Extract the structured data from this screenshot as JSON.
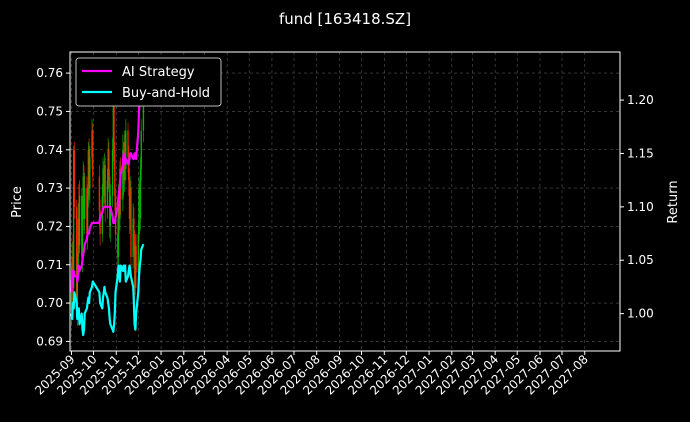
{
  "chart_data": {
    "type": "line",
    "title": "fund [163418.SZ]",
    "ylabel_left": "Price",
    "ylabel_right": "Return",
    "ylim_left": [
      0.6875,
      0.7655
    ],
    "ylim_right": [
      0.965,
      1.245
    ],
    "x_range": [
      "2025-08-30",
      "2027-09-18"
    ],
    "x_ticks": [
      "2025-09",
      "2025-10",
      "2025-11",
      "2025-12",
      "2026-01",
      "2026-02",
      "2026-03",
      "2026-04",
      "2026-05",
      "2026-06",
      "2026-07",
      "2026-08",
      "2026-09",
      "2026-10",
      "2026-11",
      "2026-12",
      "2027-01",
      "2027-02",
      "2027-03",
      "2027-04",
      "2027-05",
      "2027-06",
      "2027-07",
      "2027-08"
    ],
    "y_ticks_left": [
      0.69,
      0.7,
      0.71,
      0.72,
      0.73,
      0.74,
      0.75,
      0.76
    ],
    "y_ticks_right": [
      1.0,
      1.05,
      1.1,
      1.15,
      1.2
    ],
    "grid": true,
    "legend_position": "top-left",
    "colors": {
      "background": "#000000",
      "up": "#00c000",
      "down": "#ff2a00",
      "ai": "#ff00ff",
      "bh": "#00ffff",
      "grid": "#555555"
    },
    "series": [
      {
        "name": "AI Strategy",
        "axis": "right",
        "dates": [
          "2025-09-01",
          "2025-09-02",
          "2025-09-03",
          "2025-09-04",
          "2025-09-05",
          "2025-09-08",
          "2025-09-09",
          "2025-09-10",
          "2025-09-11",
          "2025-09-12",
          "2025-09-15",
          "2025-09-16",
          "2025-09-17",
          "2025-09-18",
          "2025-09-19",
          "2025-09-22",
          "2025-09-23",
          "2025-09-24",
          "2025-09-25",
          "2025-09-26",
          "2025-09-29",
          "2025-09-30",
          "2025-10-09",
          "2025-10-10",
          "2025-10-13",
          "2025-10-14",
          "2025-10-15",
          "2025-10-16",
          "2025-10-17",
          "2025-10-20",
          "2025-10-21",
          "2025-10-22",
          "2025-10-23",
          "2025-10-24",
          "2025-10-27",
          "2025-10-28",
          "2025-10-29",
          "2025-10-30",
          "2025-10-31",
          "2025-11-03",
          "2025-11-04",
          "2025-11-05",
          "2025-11-06",
          "2025-11-07",
          "2025-11-10",
          "2025-11-11",
          "2025-11-12",
          "2025-11-13",
          "2025-11-14",
          "2025-11-17",
          "2025-11-18",
          "2025-11-19",
          "2025-11-20",
          "2025-11-21",
          "2025-11-24",
          "2025-11-25",
          "2025-11-26",
          "2025-11-27",
          "2025-11-28",
          "2025-12-01",
          "2025-12-02",
          "2025-12-03",
          "2025-12-04",
          "2025-12-05",
          "2025-12-08"
        ],
        "values": [
          1.02,
          1.04,
          1.037,
          1.04,
          1.035,
          1.035,
          1.03,
          1.035,
          1.045,
          1.04,
          1.045,
          1.05,
          1.055,
          1.06,
          1.065,
          1.07,
          1.075,
          1.075,
          1.075,
          1.08,
          1.085,
          1.085,
          1.085,
          1.09,
          1.095,
          1.098,
          1.1,
          1.1,
          1.1,
          1.1,
          1.1,
          1.1,
          1.1,
          1.1,
          1.09,
          1.085,
          1.085,
          1.085,
          1.09,
          1.1,
          1.11,
          1.115,
          1.12,
          1.13,
          1.14,
          1.15,
          1.14,
          1.145,
          1.145,
          1.14,
          1.14,
          1.145,
          1.15,
          1.15,
          1.145,
          1.145,
          1.15,
          1.15,
          1.145,
          1.17,
          1.19,
          1.2,
          1.22,
          1.23,
          1.24
        ]
      },
      {
        "name": "Buy-and-Hold",
        "axis": "right",
        "dates": [
          "2025-09-01",
          "2025-09-02",
          "2025-09-03",
          "2025-09-04",
          "2025-09-05",
          "2025-09-08",
          "2025-09-09",
          "2025-09-10",
          "2025-09-11",
          "2025-09-12",
          "2025-09-15",
          "2025-09-16",
          "2025-09-17",
          "2025-09-18",
          "2025-09-19",
          "2025-09-22",
          "2025-09-23",
          "2025-09-24",
          "2025-09-25",
          "2025-09-26",
          "2025-09-29",
          "2025-09-30",
          "2025-10-09",
          "2025-10-10",
          "2025-10-13",
          "2025-10-14",
          "2025-10-15",
          "2025-10-16",
          "2025-10-17",
          "2025-10-20",
          "2025-10-21",
          "2025-10-22",
          "2025-10-23",
          "2025-10-24",
          "2025-10-27",
          "2025-10-28",
          "2025-10-29",
          "2025-10-30",
          "2025-10-31",
          "2025-11-03",
          "2025-11-04",
          "2025-11-05",
          "2025-11-06",
          "2025-11-07",
          "2025-11-10",
          "2025-11-11",
          "2025-11-12",
          "2025-11-13",
          "2025-11-14",
          "2025-11-17",
          "2025-11-18",
          "2025-11-19",
          "2025-11-20",
          "2025-11-21",
          "2025-11-24",
          "2025-11-25",
          "2025-11-26",
          "2025-11-27",
          "2025-11-28",
          "2025-12-01",
          "2025-12-02",
          "2025-12-03",
          "2025-12-04",
          "2025-12-05",
          "2025-12-08"
        ],
        "values": [
          1.0,
          0.995,
          1.01,
          1.005,
          1.02,
          1.01,
          0.995,
          1.0,
          1.005,
          0.99,
          1.0,
          0.985,
          0.98,
          0.985,
          1.0,
          1.005,
          1.01,
          1.015,
          1.01,
          1.02,
          1.025,
          1.03,
          1.02,
          1.01,
          1.005,
          1.015,
          1.02,
          1.025,
          1.02,
          1.015,
          1.01,
          1.005,
          0.995,
          0.99,
          0.985,
          0.983,
          0.99,
          1.0,
          1.02,
          1.035,
          1.045,
          1.04,
          1.03,
          1.045,
          1.04,
          1.045,
          1.04,
          1.045,
          1.03,
          1.035,
          1.04,
          1.045,
          1.04,
          1.035,
          1.025,
          1.01,
          0.99,
          0.985,
          1.0,
          1.02,
          1.035,
          1.045,
          1.05,
          1.06,
          1.065
        ]
      }
    ],
    "price_bars": {
      "axis": "left",
      "bars": [
        [
          "2025-09-01",
          0.698,
          0.706,
          0.694,
          0.71
        ],
        [
          "2025-09-02",
          0.706,
          0.712,
          0.7,
          0.716
        ],
        [
          "2025-09-03",
          0.712,
          0.704,
          0.699,
          0.718
        ],
        [
          "2025-09-04",
          0.704,
          0.74,
          0.702,
          0.741
        ],
        [
          "2025-09-05",
          0.74,
          0.725,
          0.722,
          0.742
        ],
        [
          "2025-09-08",
          0.725,
          0.698,
          0.696,
          0.727
        ],
        [
          "2025-09-09",
          0.698,
          0.71,
          0.694,
          0.713
        ],
        [
          "2025-09-10",
          0.71,
          0.722,
          0.707,
          0.726
        ],
        [
          "2025-09-11",
          0.722,
          0.715,
          0.712,
          0.731
        ],
        [
          "2025-09-12",
          0.715,
          0.728,
          0.713,
          0.732
        ],
        [
          "2025-09-15",
          0.728,
          0.712,
          0.709,
          0.73
        ],
        [
          "2025-09-16",
          0.712,
          0.725,
          0.708,
          0.728
        ],
        [
          "2025-09-17",
          0.725,
          0.733,
          0.722,
          0.737
        ],
        [
          "2025-09-18",
          0.733,
          0.722,
          0.719,
          0.736
        ],
        [
          "2025-09-19",
          0.722,
          0.73,
          0.718,
          0.734
        ],
        [
          "2025-09-22",
          0.73,
          0.718,
          0.716,
          0.733
        ],
        [
          "2025-09-23",
          0.718,
          0.728,
          0.714,
          0.731
        ],
        [
          "2025-09-24",
          0.728,
          0.74,
          0.725,
          0.742
        ],
        [
          "2025-09-25",
          0.74,
          0.73,
          0.727,
          0.743
        ],
        [
          "2025-09-26",
          0.73,
          0.738,
          0.726,
          0.741
        ],
        [
          "2025-09-29",
          0.738,
          0.745,
          0.735,
          0.748
        ],
        [
          "2025-09-30",
          0.745,
          0.733,
          0.73,
          0.747
        ],
        [
          "2025-10-09",
          0.733,
          0.724,
          0.72,
          0.736
        ],
        [
          "2025-10-10",
          0.724,
          0.718,
          0.715,
          0.727
        ],
        [
          "2025-10-13",
          0.718,
          0.728,
          0.716,
          0.731
        ],
        [
          "2025-10-14",
          0.728,
          0.735,
          0.726,
          0.738
        ],
        [
          "2025-10-15",
          0.735,
          0.728,
          0.724,
          0.737
        ],
        [
          "2025-10-16",
          0.728,
          0.736,
          0.726,
          0.739
        ],
        [
          "2025-10-17",
          0.736,
          0.725,
          0.721,
          0.738
        ],
        [
          "2025-10-20",
          0.725,
          0.732,
          0.722,
          0.735
        ],
        [
          "2025-10-21",
          0.732,
          0.74,
          0.729,
          0.743
        ],
        [
          "2025-10-22",
          0.74,
          0.733,
          0.73,
          0.742
        ],
        [
          "2025-10-23",
          0.733,
          0.72,
          0.717,
          0.735
        ],
        [
          "2025-10-24",
          0.72,
          0.728,
          0.716,
          0.731
        ],
        [
          "2025-10-27",
          0.728,
          0.74,
          0.725,
          0.743
        ],
        [
          "2025-10-28",
          0.74,
          0.752,
          0.737,
          0.755
        ],
        [
          "2025-10-29",
          0.752,
          0.74,
          0.735,
          0.754
        ],
        [
          "2025-10-30",
          0.74,
          0.728,
          0.724,
          0.742
        ],
        [
          "2025-10-31",
          0.728,
          0.718,
          0.714,
          0.73
        ],
        [
          "2025-11-03",
          0.718,
          0.712,
          0.708,
          0.722
        ],
        [
          "2025-11-04",
          0.712,
          0.728,
          0.709,
          0.731
        ],
        [
          "2025-11-05",
          0.728,
          0.722,
          0.718,
          0.732
        ],
        [
          "2025-11-06",
          0.722,
          0.735,
          0.719,
          0.737
        ],
        [
          "2025-11-07",
          0.735,
          0.727,
          0.723,
          0.738
        ],
        [
          "2025-11-10",
          0.727,
          0.74,
          0.724,
          0.744
        ],
        [
          "2025-11-11",
          0.74,
          0.732,
          0.728,
          0.742
        ],
        [
          "2025-11-12",
          0.732,
          0.742,
          0.729,
          0.745
        ],
        [
          "2025-11-13",
          0.742,
          0.735,
          0.731,
          0.744
        ],
        [
          "2025-11-14",
          0.735,
          0.745,
          0.732,
          0.748
        ],
        [
          "2025-11-17",
          0.745,
          0.738,
          0.734,
          0.747
        ],
        [
          "2025-11-18",
          0.738,
          0.732,
          0.728,
          0.741
        ],
        [
          "2025-11-19",
          0.732,
          0.722,
          0.718,
          0.735
        ],
        [
          "2025-11-20",
          0.722,
          0.73,
          0.719,
          0.733
        ],
        [
          "2025-11-21",
          0.73,
          0.712,
          0.708,
          0.732
        ],
        [
          "2025-11-24",
          0.712,
          0.722,
          0.709,
          0.726
        ],
        [
          "2025-11-25",
          0.722,
          0.716,
          0.713,
          0.725
        ],
        [
          "2025-11-26",
          0.716,
          0.704,
          0.701,
          0.719
        ],
        [
          "2025-11-27",
          0.704,
          0.715,
          0.702,
          0.718
        ],
        [
          "2025-11-28",
          0.715,
          0.708,
          0.704,
          0.718
        ],
        [
          "2025-12-01",
          0.708,
          0.718,
          0.705,
          0.721
        ],
        [
          "2025-12-02",
          0.718,
          0.73,
          0.716,
          0.733
        ],
        [
          "2025-12-03",
          0.73,
          0.722,
          0.718,
          0.732
        ],
        [
          "2025-12-04",
          0.722,
          0.735,
          0.719,
          0.738
        ],
        [
          "2025-12-05",
          0.735,
          0.745,
          0.732,
          0.748
        ],
        [
          "2025-12-08",
          0.745,
          0.752,
          0.742,
          0.756
        ]
      ]
    }
  }
}
